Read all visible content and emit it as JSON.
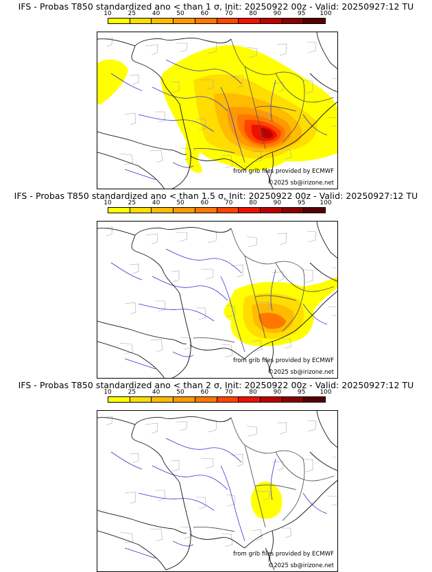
{
  "legend": {
    "ticks": [
      "10",
      "25",
      "40",
      "50",
      "60",
      "70",
      "80",
      "90",
      "95",
      "100"
    ],
    "colors": [
      "#ffff00",
      "#ffdd00",
      "#ffbb00",
      "#ff9900",
      "#ff7700",
      "#ff4400",
      "#ee1100",
      "#bb0000",
      "#880000",
      "#550000"
    ]
  },
  "credits": {
    "source": "from grib files provided by ECMWF",
    "copyright": "©2025 sb@irizone.net"
  },
  "panels": [
    {
      "title": "IFS - Probas T850  standardized ano < than 1 σ, Init: 20250922 00z - Valid: 20250927:12 TU"
    },
    {
      "title": "IFS - Probas T850  standardized ano < than 1.5 σ, Init: 20250922 00z - Valid: 20250927:12 TU"
    },
    {
      "title": "IFS - Probas T850  standardized ano < than 2 σ, Init: 20250922 00z - Valid: 20250927:12 TU"
    }
  ]
}
